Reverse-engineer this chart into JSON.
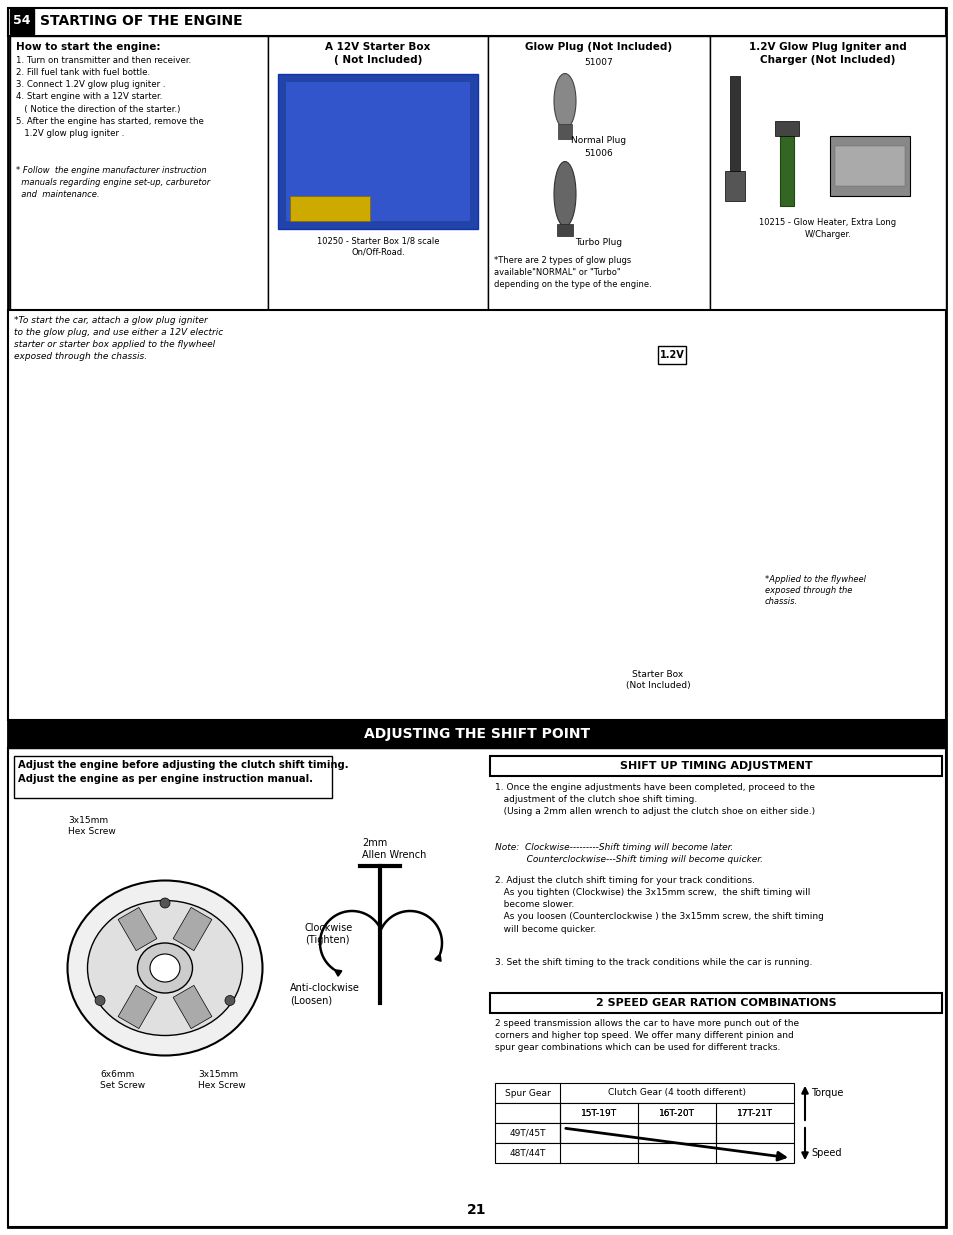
{
  "page_bg": "#ffffff",
  "title1": "STARTING OF THE ENGINE",
  "title1_num": "54",
  "title2": "ADJUSTING THE SHIFT POINT",
  "page_number": "21",
  "col1_title": "How to start the engine:",
  "col1_steps": "1. Turn on transmitter and then receiver.\n2. Fill fuel tank with fuel bottle.\n3. Connect 1.2V glow plug igniter .\n4. Start engine with a 12V starter.\n   ( Notice the direction of the starter.)\n5. After the engine has started, remove the\n   1.2V glow plug igniter .",
  "col1_note": "* Follow  the engine manufacturer instruction\n  manuals regarding engine set-up, carburetor\n  and  maintenance.",
  "col2_title": "A 12V Starter Box\n( Not Included)",
  "col2_caption": "10250 - Starter Box 1/8 scale\nOn/Off-Road.",
  "col3_title": "Glow Plug (Not Included)",
  "col3_num1": "51007",
  "col3_label1": "Normal Plug",
  "col3_num2": "51006",
  "col3_label2": "Turbo Plug",
  "col3_note": "*There are 2 types of glow plugs\navailable\"NORMAL\" or \"Turbo\"\ndepending on the type of the engine.",
  "col4_title": "1.2V Glow Plug Igniter and\nCharger (Not Included)",
  "col4_caption": "10215 - Glow Heater, Extra Long\nW/Charger.",
  "top_note": "*To start the car, attach a glow plug igniter\nto the glow plug, and use either a 12V electric\nstarter or starter box applied to the flywheel\nexposed through the chassis.",
  "starter_box_label": "Starter Box\n(Not Included)",
  "applied_note": "*Applied to the flywheel\nexposed through the\nchassis.",
  "adj_box_text": "Adjust the engine before adjusting the clutch shift timing.\nAdjust the engine as per engine instruction manual.",
  "label_3x15_1": "3x15mm\nHex Screw",
  "label_3x15_2": "3x15mm\nHex Screw",
  "label_6x6mm": "6x6mm\nSet Screw",
  "label_2mm": "2mm\nAllen Wrench",
  "label_cw": "Clockwise\n(Tighten)",
  "label_ccw": "Anti-clockwise\n(Loosen)",
  "shift_title": "SHIFT UP TIMING ADJUSTMENT",
  "shift_step1": "1. Once the engine adjustments have been completed, proceed to the\n   adjustment of the clutch shoe shift timing.\n   (Using a 2mm allen wrench to adjust the clutch shoe on either side.)",
  "shift_note": "Note:  Clockwise---------Shift timing will become later.\n           Counterclockwise---Shift timing will become quicker.",
  "shift_step2": "2. Adjust the clutch shift timing for your track conditions.\n   As you tighten (Clockwise) the 3x15mm screw,  the shift timing will\n   become slower.\n   As you loosen (Counterclockwise ) the 3x15mm screw, the shift timing\n   will become quicker.",
  "shift_step3": "3. Set the shift timing to the track conditions while the car is running.",
  "gear_title": "2 SPEED GEAR RATION COMBINATIONS",
  "gear_text": "2 speed transmission allows the car to have more punch out of the\ncorners and higher top speed. We offer many different pinion and\nspur gear combinations which can be used for different tracks.",
  "table_col_header": "Clutch Gear (4 tooth different)",
  "table_spur_header": "Spur Gear",
  "table_sub_headers": [
    "15T-19T",
    "16T-20T",
    "17T-21T"
  ],
  "table_rows": [
    "49T/45T",
    "48T/44T"
  ],
  "torque_label": "Torque",
  "speed_label": "Speed"
}
